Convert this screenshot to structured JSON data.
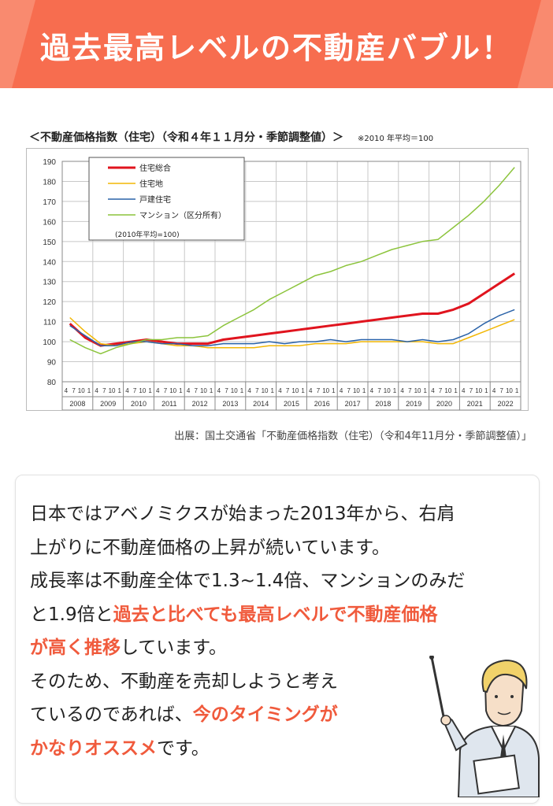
{
  "banner": {
    "title": "過去最高レベルの不動産バブル！"
  },
  "chart_header": {
    "title": "＜不動産価格指数（住宅）（令和４年１１月分・季節調整値）＞",
    "note": "※2010 年平均＝100"
  },
  "source": "出展：国土交通省「不動産価格指数（住宅）（令和4年11月分・季節調整値）」",
  "chart_data": {
    "type": "line",
    "ylim": [
      80,
      190
    ],
    "yticks": [
      80,
      90,
      100,
      110,
      120,
      130,
      140,
      150,
      160,
      170,
      180,
      190
    ],
    "years": [
      "2008",
      "2009",
      "2010",
      "2011",
      "2012",
      "2013",
      "2014",
      "2015",
      "2016",
      "2017",
      "2018",
      "2019",
      "2020",
      "2021",
      "2022"
    ],
    "month_ticks": [
      "4",
      "7",
      "10",
      "1"
    ],
    "legend_note": "(2010年平均=100)",
    "x": [
      2008.25,
      2008.75,
      2009.25,
      2009.75,
      2010.25,
      2010.75,
      2011.25,
      2011.75,
      2012.25,
      2012.75,
      2013.25,
      2013.75,
      2014.25,
      2014.75,
      2015.25,
      2015.75,
      2016.25,
      2016.75,
      2017.25,
      2017.75,
      2018.25,
      2018.75,
      2019.25,
      2019.75,
      2020.25,
      2020.75,
      2021.25,
      2021.75,
      2022.25,
      2022.75
    ],
    "series": [
      {
        "name": "住宅総合",
        "color": "#e0141e",
        "width": 3,
        "values": [
          109,
          102,
          98,
          99,
          100,
          101,
          100,
          99,
          99,
          99,
          101,
          102,
          103,
          104,
          105,
          106,
          107,
          108,
          109,
          110,
          111,
          112,
          113,
          114,
          114,
          116,
          119,
          124,
          129,
          134
        ]
      },
      {
        "name": "住宅地",
        "color": "#f2b705",
        "width": 1.5,
        "values": [
          112,
          105,
          99,
          98,
          99,
          100,
          99,
          98,
          98,
          97,
          97,
          97,
          97,
          98,
          98,
          98,
          99,
          99,
          99,
          100,
          100,
          100,
          100,
          100,
          99,
          99,
          102,
          105,
          108,
          111
        ]
      },
      {
        "name": "戸建住宅",
        "color": "#2a62a8",
        "width": 1.5,
        "values": [
          108,
          103,
          98,
          98,
          100,
          100,
          99,
          99,
          98,
          98,
          99,
          99,
          99,
          100,
          99,
          100,
          100,
          101,
          100,
          101,
          101,
          101,
          100,
          101,
          100,
          101,
          104,
          109,
          113,
          116
        ]
      },
      {
        "name": "マンション（区分所有）",
        "color": "#8cc43c",
        "width": 1.5,
        "values": [
          101,
          97,
          94,
          97,
          99,
          101,
          101,
          102,
          102,
          103,
          108,
          112,
          116,
          121,
          125,
          129,
          133,
          135,
          138,
          140,
          143,
          146,
          148,
          150,
          151,
          157,
          163,
          170,
          178,
          187
        ]
      }
    ]
  },
  "text": {
    "l1": "日本ではアベノミクスが始まった2013年から、右肩",
    "l2": "上がりに不動産価格の上昇が続いています。",
    "l3": "成長率は不動産全体で1.3~1.4倍、マンションのみだ",
    "l4a": "と1.9倍と",
    "l4b": "過去と比べても最高レベルで不動産価格",
    "l5a": "が高く推移",
    "l5b": "しています。",
    "l6": "そのため、不動産を売却しようと考え",
    "l7a": "ているのであれば、",
    "l7b": "今のタイミングが",
    "l8a": "かなりオススメ",
    "l8b": "です。"
  }
}
